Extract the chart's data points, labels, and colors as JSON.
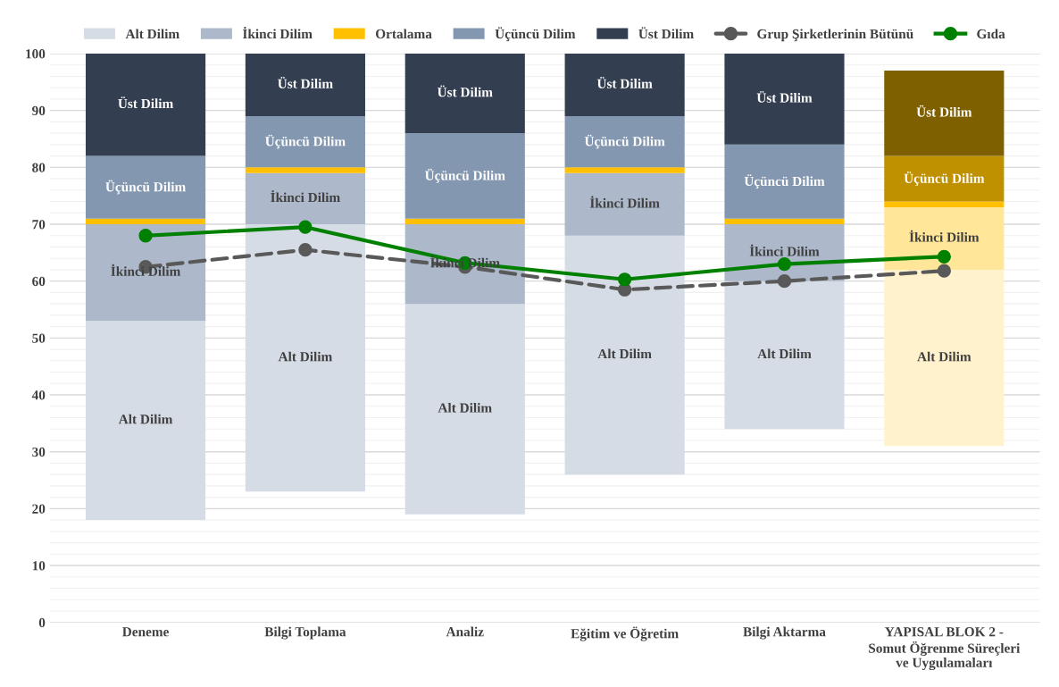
{
  "chart_data": {
    "type": "bar",
    "stacked": true,
    "categories": [
      "Deneme",
      "Bilgi Toplama",
      "Analiz",
      "Eğitim ve Öğretim",
      "Bilgi Aktarma",
      "YAPISAL BLOK 2 -\nSomut Öğrenme Süreçleri\nve Uygulamaları"
    ],
    "series": [
      {
        "name": "Alt Dilim",
        "base": [
          18,
          23,
          19,
          26,
          34,
          31
        ],
        "color": "#d6dce5",
        "colors": [
          "#d6dce5",
          "#d6dce5",
          "#d6dce5",
          "#d6dce5",
          "#d6dce5",
          "#fff2cc"
        ],
        "values": [
          35,
          47,
          37,
          42,
          26,
          31
        ],
        "value_labels": [
          "Alt Dilim",
          "Alt Dilim",
          "Alt Dilim",
          "Alt Dilim",
          "Alt Dilim",
          "Alt Dilim"
        ]
      },
      {
        "name": "İkinci Dilim",
        "color": "#adb9ca",
        "colors": [
          "#adb9ca",
          "#adb9ca",
          "#adb9ca",
          "#adb9ca",
          "#adb9ca",
          "#ffe699"
        ],
        "values": [
          17,
          9,
          14,
          11,
          10,
          11
        ],
        "value_labels": [
          "İkinci Dilim",
          "İkinci Dilim",
          "İkinci Dilim",
          "İkinci Dilim",
          "İkinci Dilim",
          "İkinci Dilim"
        ]
      },
      {
        "name": "Ortalama",
        "color": "#ffc000",
        "values": [
          1,
          1,
          1,
          1,
          1,
          1
        ]
      },
      {
        "name": "Üçüncü Dilim",
        "color": "#8497b0",
        "colors": [
          "#8497b0",
          "#8497b0",
          "#8497b0",
          "#8497b0",
          "#8497b0",
          "#bf9000"
        ],
        "values": [
          11,
          9,
          15,
          9,
          13,
          8
        ],
        "value_labels": [
          "Üçüncü Dilim",
          "Üçüncü Dilim",
          "Üçüncü Dilim",
          "Üçüncü Dilim",
          "Üçüncü Dilim",
          "Üçüncü Dilim"
        ]
      },
      {
        "name": "Üst Dilim",
        "color": "#333f50",
        "colors": [
          "#333f50",
          "#333f50",
          "#333f50",
          "#333f50",
          "#333f50",
          "#7f6000"
        ],
        "values": [
          18,
          11,
          14,
          11,
          16,
          15
        ],
        "value_labels": [
          "Üst Dilim",
          "Üst Dilim",
          "Üst Dilim",
          "Üst Dilim",
          "Üst Dilim",
          "Üst Dilim"
        ]
      },
      {
        "name": "Grup Şirketlerinin Bütünü",
        "type": "line",
        "color": "#595959",
        "line_style": "dashed",
        "marker": "circle",
        "values": [
          62.5,
          65.5,
          62.5,
          58.5,
          60,
          61.8
        ]
      },
      {
        "name": "Gıda",
        "type": "line",
        "color": "#008000",
        "line_style": "solid",
        "marker": "circle",
        "values": [
          68,
          69.5,
          63.2,
          60.3,
          63,
          64.3
        ]
      }
    ],
    "ylim": [
      0,
      100
    ],
    "yticks": [
      0,
      10,
      20,
      30,
      40,
      50,
      60,
      70,
      80,
      90,
      100
    ],
    "grid": "y",
    "legend": "top"
  }
}
